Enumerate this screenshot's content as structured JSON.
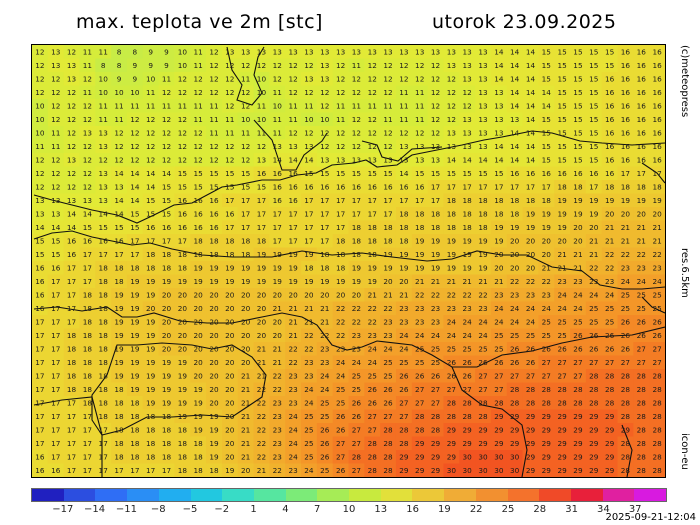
{
  "header": {
    "title_left": "max. teplota ve 2m [stc]",
    "title_right": "utorok 23.09.2025"
  },
  "side_labels": {
    "credit": "(c)meteopress",
    "resolution": "res.6.5km",
    "model": "icon-eu"
  },
  "timestamp": "2025-09-21-12:04",
  "colorbar": {
    "labels": [
      "−17",
      "−14",
      "−11",
      "−8",
      "−5",
      "−2",
      "1",
      "4",
      "7",
      "10",
      "13",
      "16",
      "19",
      "22",
      "25",
      "28",
      "31",
      "34",
      "37"
    ],
    "colors": [
      "#2020c0",
      "#2c4ee0",
      "#2f6ef5",
      "#2a8ef5",
      "#21aef0",
      "#22c8e0",
      "#38dcc6",
      "#56e6a0",
      "#7ceb78",
      "#a6ec56",
      "#c8ea3e",
      "#e2e03a",
      "#ecc838",
      "#f0ac36",
      "#f29030",
      "#f4722c",
      "#f04a28",
      "#e8203a",
      "#e020a0",
      "#d81ae0"
    ]
  },
  "map": {
    "value_grid": [
      "12 13 12 11 11 8 8 9 9 10 11 12 13 13 13 13 13 13 13 13 13 13 13 13 13 13 13 13 13 14 14 14 15 15 15 15 15 16 16 16",
      "12 13 13 11 8 8 9 9 9 10 11 12 12 12 12 12 12 12 13 12 11 12 12 12 12 12 13 13 13 14 14 14 15 15 15 15 15 16 16 16",
      "12 12 13 12 10 9 9 10 11 12 12 12 12 11 10 12 12 13 13 12 12 12 12 12 12 12 12 13 13 14 14 14 15 15 15 15 16 16 16 16",
      "12 12 12 11 10 10 10 11 12 12 12 12 12 12 10 11 12 12 12 12 12 12 12 11 11 12 12 12 13 13 14 14 14 15 15 15 16 16 16 16",
      "10 12 12 12 11 11 11 11 11 11 11 11 12 12 11 10 11 11 12 11 11 11 11 11 11 12 12 12 13 13 14 14 14 15 15 15 16 16 16 16",
      "10 12 12 12 11 11 12 12 12 12 11 11 11 10 10 11 11 10 10 11 12 12 11 11 11 12 12 13 13 13 13 14 15 15 15 15 16 16 16 16",
      "10 11 12 13 13 12 12 12 12 12 12 11 11 11 11 11 12 12 12 12 12 12 12 12 12 12 13 13 13 13 14 14 15 15 15 15 16 16 16 16",
      "11 11 12 12 13 12 12 12 12 12 12 12 12 12 12 13 13 13 12 12 12 12 12 13 13 13 13 13 13 14 14 14 15 15 15 15 16 16 16 16",
      "12 12 13 12 12 12 12 12 12 12 12 12 12 12 13 14 14 14 13 13 13 13 13 13 13 13 14 14 14 14 14 14 15 15 15 15 16 16 16 16",
      "12 12 12 12 13 14 14 14 14 15 15 15 15 15 16 16 16 15 15 15 15 15 15 14 15 15 15 15 15 15 16 16 16 16 16 16 16 17 17 17",
      "12 12 12 12 13 13 14 14 15 15 15 15 15 15 15 16 16 16 16 16 16 16 16 16 16 17 17 17 17 17 17 17 17 18 18 17 18 18 18 18",
      "13 13 13 13 13 14 14 15 15 16 16 16 17 17 17 16 16 17 17 17 17 17 17 17 17 17 18 18 18 18 18 18 18 19 19 19 19 19 19 19",
      "13 13 14 14 14 14 15 15 15 16 16 16 16 17 17 17 17 17 17 17 17 17 17 18 18 18 18 18 18 18 18 19 19 19 19 19 20 20 20 20",
      "14 14 14 15 15 15 15 16 16 16 16 16 17 17 17 17 17 17 17 17 18 18 18 18 18 18 18 18 18 19 19 19 19 19 20 20 21 21 21 21",
      "15 15 16 16 16 16 17 17 17 17 18 18 18 18 18 17 17 17 17 18 18 18 18 18 19 19 19 19 19 19 20 20 20 20 20 21 21 21 21 21",
      "15 15 16 17 17 17 17 18 18 18 18 18 18 18 19 19 19 19 18 18 18 18 19 19 19 19 19 19 19 20 20 20 20 21 21 21 22 22 22 22",
      "16 16 17 17 18 18 18 18 18 18 19 19 19 19 19 19 19 18 18 18 19 19 19 19 19 19 19 19 19 20 20 20 21 21 21 22 22 23 23 23",
      "16 17 17 17 18 18 19 19 19 19 19 19 19 19 19 19 19 19 19 19 19 19 20 20 21 21 21 21 21 21 22 22 22 23 23 23 23 24 24 24",
      "16 17 17 18 18 19 19 19 20 20 20 20 20 20 20 20 20 20 20 20 20 21 21 21 22 22 22 22 22 23 23 23 23 24 24 24 24 25 25 25",
      "16 17 17 18 18 19 19 20 20 20 20 20 20 20 20 21 21 21 21 22 22 22 22 23 23 23 23 23 23 24 24 24 24 24 24 25 25 25 25 25",
      "17 17 17 18 18 19 19 19 20 20 20 20 20 20 20 20 21 21 21 22 22 22 23 23 23 23 24 24 24 24 24 24 25 25 25 25 25 26 26 26",
      "17 17 18 18 18 19 19 19 20 20 20 20 20 20 20 20 21 22 22 22 23 23 23 24 24 24 24 24 24 25 25 25 25 25 26 26 26 26 26 26",
      "17 17 18 18 18 19 19 19 20 20 20 20 20 20 21 21 22 22 23 23 23 24 24 24 25 25 25 25 25 25 26 26 26 26 26 26 26 26 27 27",
      "17 17 18 18 18 19 19 19 19 19 20 20 20 20 21 21 22 23 23 24 24 24 25 25 25 25 26 26 26 26 26 26 27 27 27 27 27 27 27 27",
      "17 17 18 18 18 19 19 19 19 19 20 20 20 21 21 22 23 23 24 24 25 25 25 26 26 26 26 26 27 27 27 27 27 27 27 28 28 28 28 28",
      "17 17 18 18 18 18 19 19 19 19 19 20 20 21 22 22 23 24 24 25 25 26 26 26 27 27 27 27 27 27 28 28 28 28 28 28 28 28 28 28",
      "17 17 17 18 18 18 18 19 19 19 19 20 20 21 22 23 23 24 25 25 26 26 26 27 27 27 28 28 28 28 28 28 28 28 28 28 28 28 28 28",
      "17 17 17 17 18 18 18 18 18 19 19 19 20 21 22 23 24 25 25 26 26 27 27 27 28 28 28 28 28 29 29 29 29 29 29 29 29 28 28 28",
      "17 17 17 17 17 18 18 18 18 18 19 19 20 21 22 23 24 25 26 26 27 27 28 28 28 28 29 29 29 29 29 29 29 29 29 29 29 29 28 28",
      "17 17 17 17 17 18 18 18 18 18 18 19 20 21 22 23 24 25 26 27 27 28 28 28 29 29 29 29 29 29 29 29 29 29 29 29 29 28 28 28",
      "16 17 17 17 17 18 18 18 18 18 18 19 20 21 22 23 24 25 26 27 28 28 28 29 29 29 29 30 30 30 30 29 29 29 29 29 29 28 28 28",
      "16 16 17 17 17 17 17 17 17 18 18 18 19 20 21 22 23 24 25 26 27 28 28 29 29 29 30 30 30 30 30 29 29 29 29 29 29 28 28 28"
    ]
  }
}
